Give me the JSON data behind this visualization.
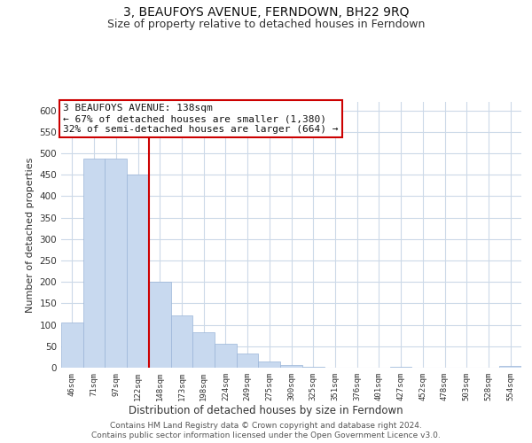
{
  "title": "3, BEAUFOYS AVENUE, FERNDOWN, BH22 9RQ",
  "subtitle": "Size of property relative to detached houses in Ferndown",
  "xlabel": "Distribution of detached houses by size in Ferndown",
  "ylabel": "Number of detached properties",
  "bar_labels": [
    "46sqm",
    "71sqm",
    "97sqm",
    "122sqm",
    "148sqm",
    "173sqm",
    "198sqm",
    "224sqm",
    "249sqm",
    "275sqm",
    "300sqm",
    "325sqm",
    "351sqm",
    "376sqm",
    "401sqm",
    "427sqm",
    "452sqm",
    "478sqm",
    "503sqm",
    "528sqm",
    "554sqm"
  ],
  "bar_values": [
    105,
    487,
    487,
    451,
    200,
    122,
    82,
    56,
    34,
    15,
    7,
    3,
    0,
    1,
    0,
    2,
    0,
    0,
    0,
    0,
    5
  ],
  "bar_color": "#c8d9ef",
  "bar_edge_color": "#9ab5d8",
  "vline_x": 3.5,
  "vline_color": "#cc0000",
  "annotation_text": "3 BEAUFOYS AVENUE: 138sqm\n← 67% of detached houses are smaller (1,380)\n32% of semi-detached houses are larger (664) →",
  "annotation_box_edgecolor": "#cc0000",
  "ylim": [
    0,
    620
  ],
  "yticks": [
    0,
    50,
    100,
    150,
    200,
    250,
    300,
    350,
    400,
    450,
    500,
    550,
    600
  ],
  "footer_line1": "Contains HM Land Registry data © Crown copyright and database right 2024.",
  "footer_line2": "Contains public sector information licensed under the Open Government Licence v3.0.",
  "bg_color": "#ffffff",
  "grid_color": "#ccd9e8",
  "title_fontsize": 10,
  "subtitle_fontsize": 9,
  "annotation_fontsize": 8
}
